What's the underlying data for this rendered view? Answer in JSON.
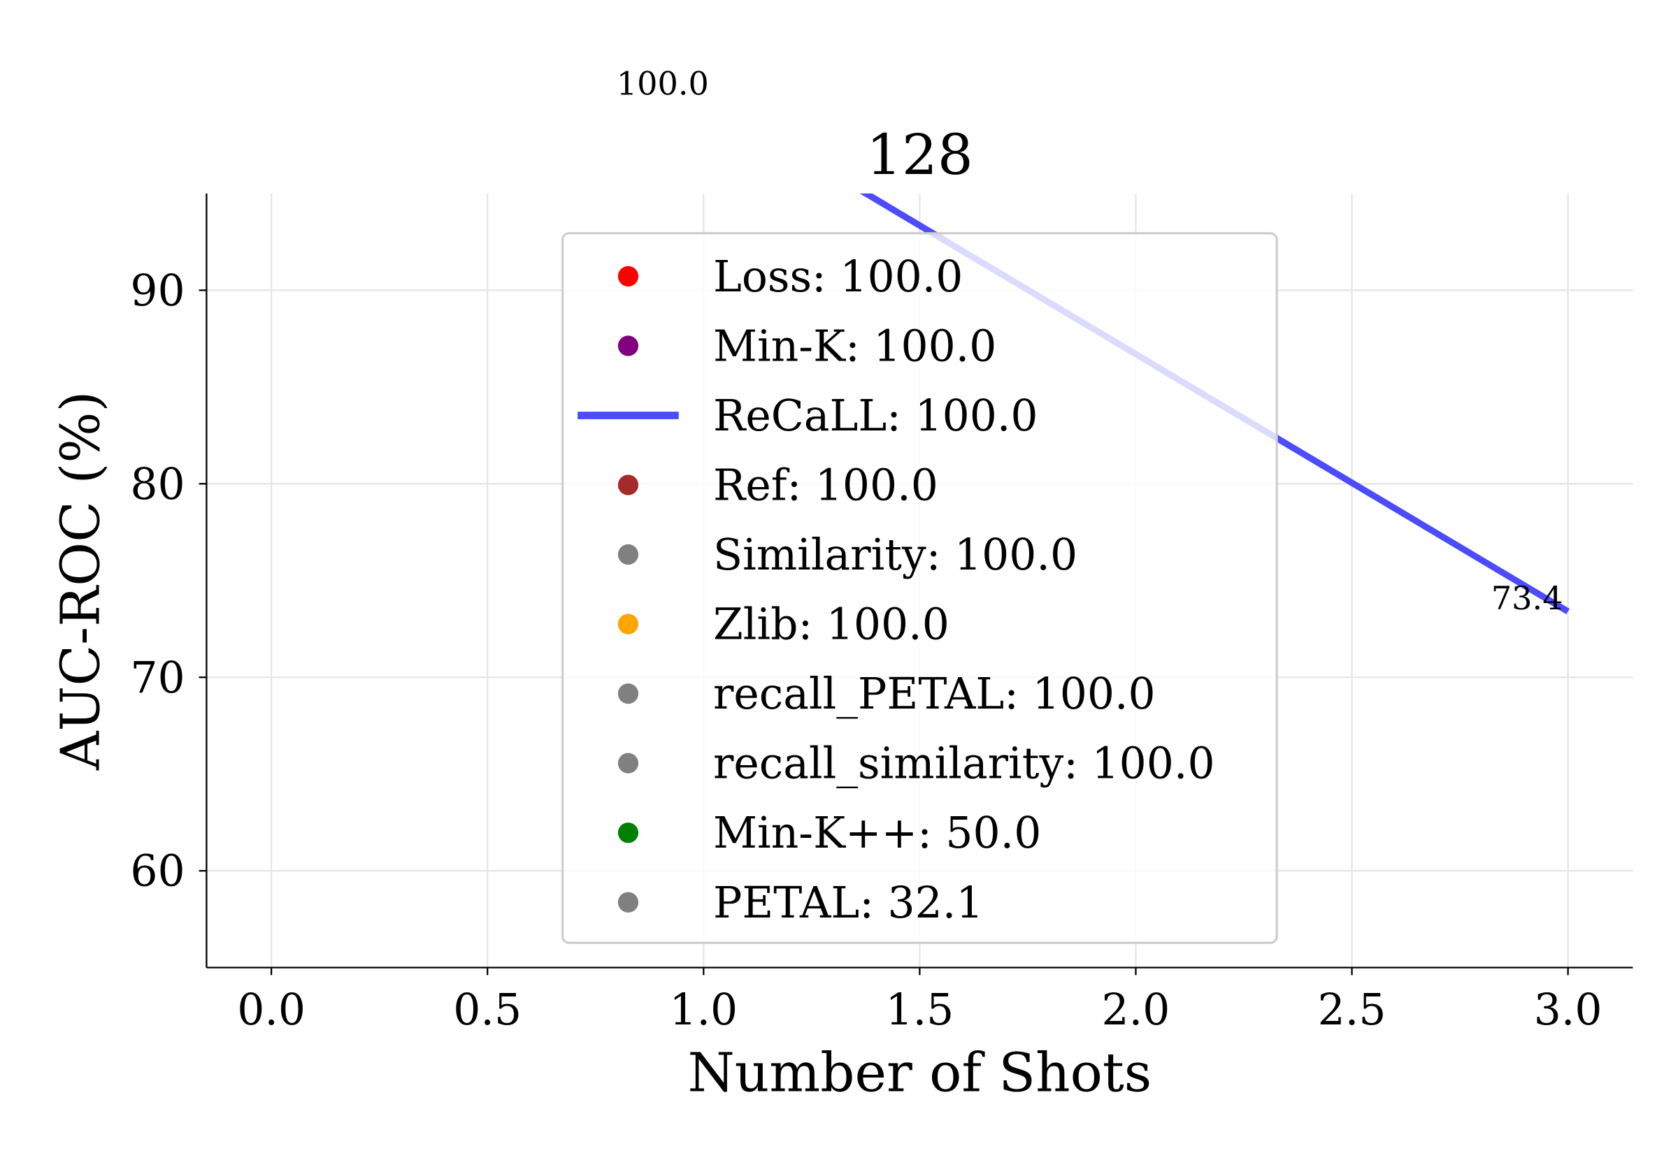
{
  "chart_data": {
    "type": "line",
    "title": "128",
    "x_label": "Number of Shots",
    "y_label": "AUC-ROC (%)",
    "xlim": [
      -0.15,
      3.15
    ],
    "ylim": [
      55,
      95
    ],
    "xticks": [
      {
        "value": 0,
        "label": "0.0"
      },
      0.5,
      {
        "value": 1,
        "label": "1.0"
      },
      1.5,
      {
        "value": 2,
        "label": "2.0"
      },
      2.5,
      {
        "value": 3,
        "label": "3.0"
      }
    ],
    "yticks": [
      60,
      70,
      80,
      90
    ],
    "grid": true,
    "legend": "upper center",
    "series": [
      {
        "name": "Loss: 100.0",
        "color": "#ff0000",
        "style": "scatter"
      },
      {
        "name": "Min-K: 100.0",
        "color": "#800080",
        "style": "scatter"
      },
      {
        "name": "ReCaLL: 100.0",
        "color": "#4b4bff",
        "style": "line",
        "x": [
          1,
          3
        ],
        "values": [
          100,
          73.4
        ],
        "value_labels": [
          "100.0",
          "73.4"
        ]
      },
      {
        "name": "Ref: 100.0",
        "color": "#a52a2a",
        "style": "scatter"
      },
      {
        "name": "Similarity: 100.0",
        "color": "#808080",
        "style": "scatter"
      },
      {
        "name": "Zlib: 100.0",
        "color": "#ffa500",
        "style": "scatter"
      },
      {
        "name": "recall_PETAL: 100.0",
        "color": "#808080",
        "style": "scatter"
      },
      {
        "name": "recall_similarity: 100.0",
        "color": "#808080",
        "style": "scatter"
      },
      {
        "name": "Min-K++: 50.0",
        "color": "#008000",
        "style": "scatter"
      },
      {
        "name": "PETAL: 32.1",
        "color": "#808080",
        "style": "scatter"
      }
    ]
  }
}
